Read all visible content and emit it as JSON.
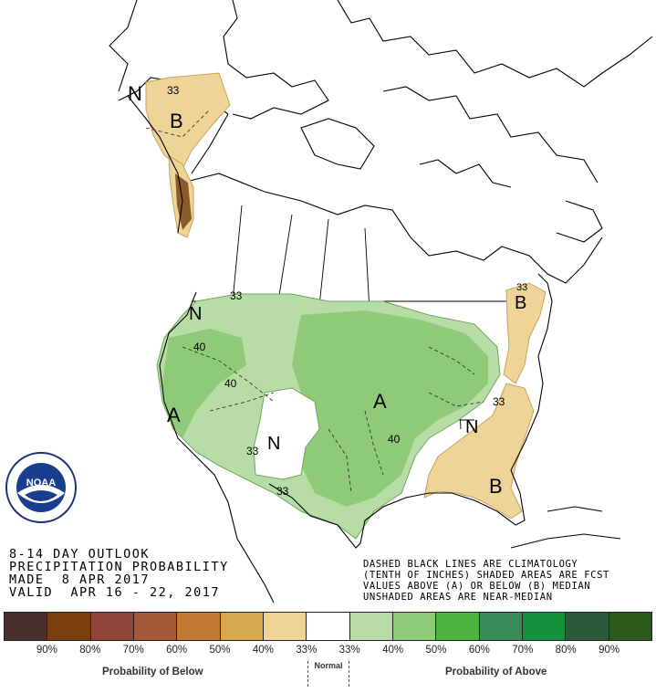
{
  "title": {
    "line1": "8-14 DAY OUTLOOK",
    "line2": "PRECIPITATION PROBABILITY",
    "line3": "MADE  8 APR 2017",
    "line4": "VALID  APR 16 - 22, 2017"
  },
  "notes": {
    "line1": "DASHED BLACK LINES ARE CLIMATOLOGY",
    "line2": "(TENTH OF INCHES) SHADED AREAS ARE FCST",
    "line3": "VALUES ABOVE (A) OR BELOW (B) MEDIAN",
    "line4": "UNSHADED AREAS ARE NEAR-MEDIAN"
  },
  "logo": {
    "text": "NOAA",
    "ring_text": "NATIONAL OCEANIC AND ATMOSPHERIC ADMINISTRATION",
    "bottom_text": "U.S. DEPARTMENT OF COMMERCE"
  },
  "map_labels": {
    "ak_N": "N",
    "ak_33": "33",
    "ak_B": "B",
    "pnw_N": "N",
    "pnw_33": "33",
    "west_40": "40",
    "west_40b": "40",
    "west_A": "A",
    "sw_33": "33",
    "sw_N": "N",
    "sw_33b": "33",
    "plains_A": "A",
    "plains_40": "40",
    "ne_33": "33",
    "ne_B": "B",
    "se_33": "33",
    "se_N": "N",
    "se_B": "B"
  },
  "legend": {
    "colors": [
      "#4a2f2f",
      "#7a3f0f",
      "#8f4638",
      "#a3583a",
      "#c07a35",
      "#d6a94e",
      "#eed597",
      "#ffffff",
      "#b7dca6",
      "#8fca79",
      "#4bb33f",
      "#3b8a5a",
      "#13913c",
      "#2a5a3a",
      "#2b5a1c"
    ],
    "ticks": [
      "90%",
      "80%",
      "70%",
      "60%",
      "50%",
      "40%",
      "33%",
      "33%",
      "40%",
      "50%",
      "60%",
      "70%",
      "80%",
      "90%"
    ],
    "below_label": "Probability of Below",
    "normal_label": "Normal",
    "above_label": "Probability of Above"
  }
}
